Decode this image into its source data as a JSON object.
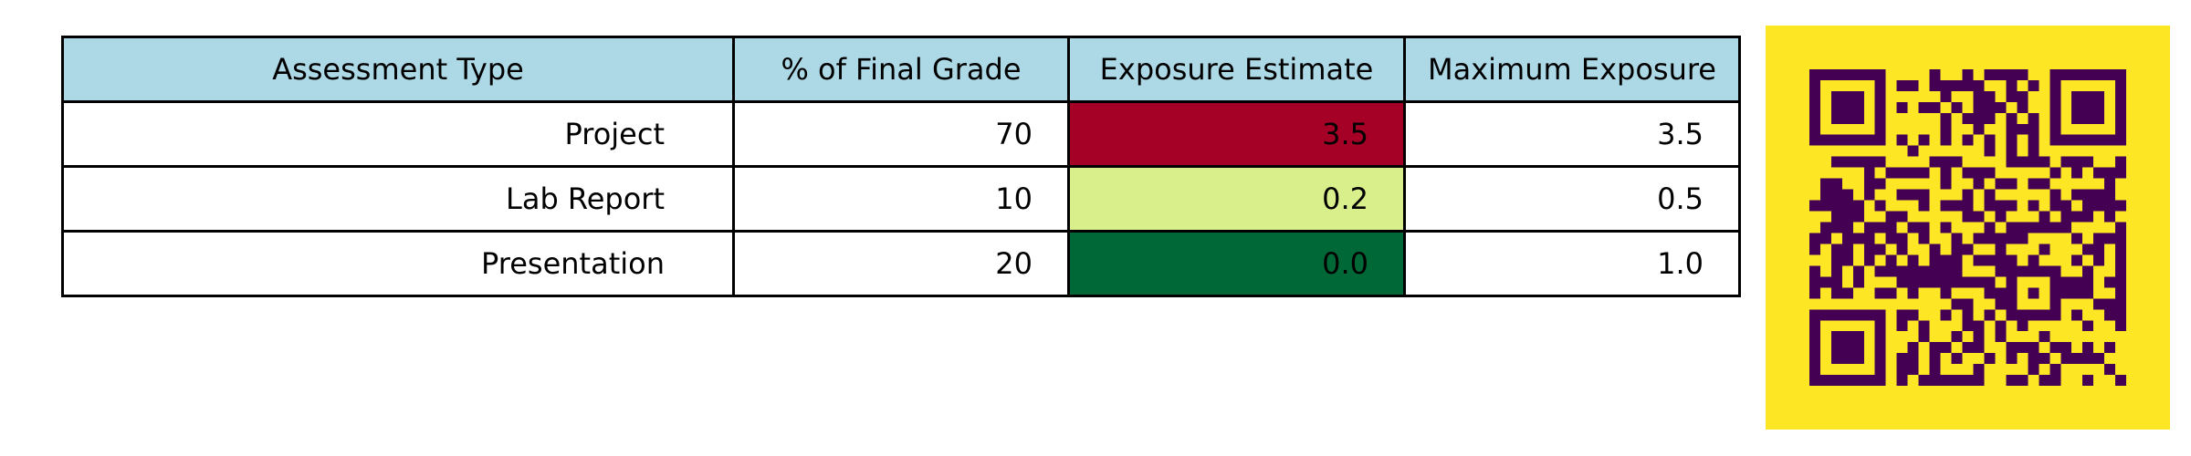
{
  "chart_data": {
    "type": "table",
    "columns": [
      "Assessment Type",
      "% of Final Grade",
      "Exposure Estimate",
      "Maximum Exposure"
    ],
    "rows": [
      {
        "assessment_type": "Project",
        "percent_of_final_grade": "70",
        "exposure_estimate": "3.5",
        "maximum_exposure": "3.5",
        "exposure_color": "#a50026"
      },
      {
        "assessment_type": "Lab Report",
        "percent_of_final_grade": "10",
        "exposure_estimate": "0.2",
        "maximum_exposure": "0.5",
        "exposure_color": "#d9ef8b"
      },
      {
        "assessment_type": "Presentation",
        "percent_of_final_grade": "20",
        "exposure_estimate": "0.0",
        "maximum_exposure": "1.0",
        "exposure_color": "#006837"
      }
    ],
    "header_color": "#add8e6"
  },
  "qr_code": {
    "description_icon": "qr-code-icon",
    "background_color": "#fde725",
    "module_color": "#440154"
  }
}
